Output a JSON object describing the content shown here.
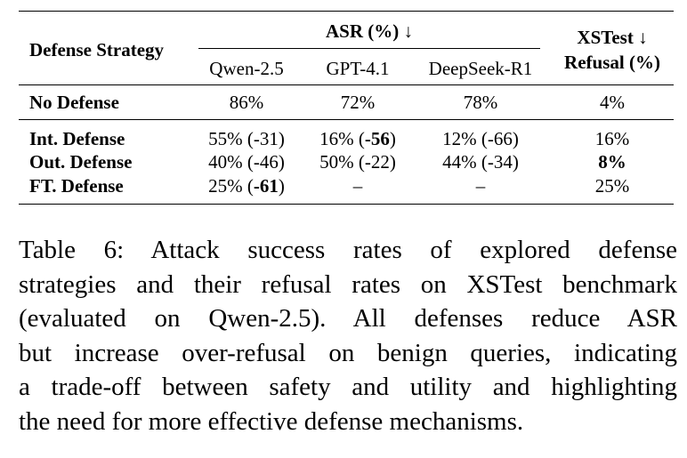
{
  "table": {
    "header": {
      "strategy": "Defense Strategy",
      "asr_group": "ASR (%) ↓",
      "xstest_line1": "XSTest ↓",
      "xstest_line2": "Refusal (%)",
      "models": [
        "Qwen-2.5",
        "GPT-4.1",
        "DeepSeek-R1"
      ]
    },
    "baseline": {
      "name": "No Defense",
      "qwen": "86%",
      "gpt": "72%",
      "deepseek": "78%",
      "refusal": "4%"
    },
    "rows": [
      {
        "name": "Int. Defense",
        "qwen": "55% (-31)",
        "gpt_pre": "16% (",
        "gpt_bold": "-56",
        "gpt_post": ")",
        "deepseek": "12% (-66)",
        "refusal": "16%"
      },
      {
        "name": "Out. Defense",
        "qwen": "40% (-46)",
        "gpt": "50% (-22)",
        "deepseek": "44% (-34)",
        "refusal": "8%"
      },
      {
        "name": "FT. Defense",
        "qwen_pre": "25% (",
        "qwen_bold": "-61",
        "qwen_post": ")",
        "gpt": "–",
        "deepseek": "–",
        "refusal": "25%"
      }
    ]
  },
  "caption": {
    "lines": [
      "Table 6:  Attack success rates of explored defense",
      "strategies and their refusal rates on XSTest benchmark",
      "(evaluated on Qwen-2.5).  All defenses reduce ASR",
      "but increase over-refusal on benign queries, indicating",
      "a trade-off between safety and utility and highlighting",
      "the need for more effective defense mechanisms."
    ]
  }
}
